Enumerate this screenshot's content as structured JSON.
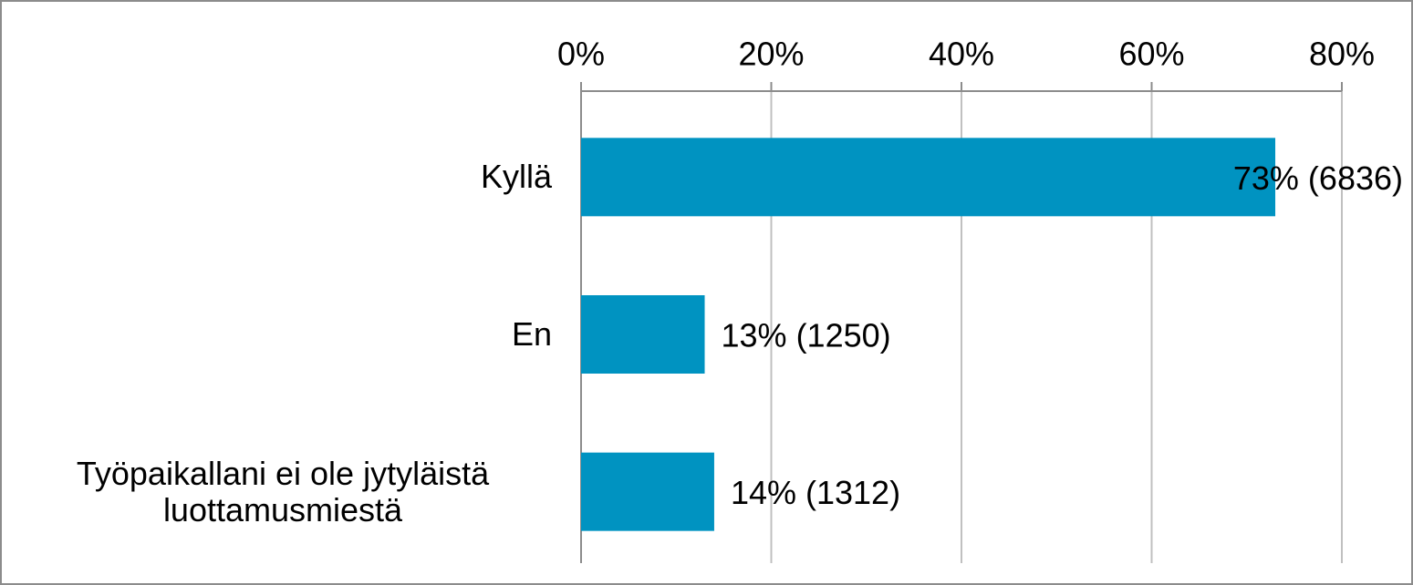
{
  "chart_data": {
    "type": "bar",
    "orientation": "horizontal",
    "categories": [
      "Kyllä",
      "En",
      "Työpaikallani ei ole jytyläistä luottamusmiestä"
    ],
    "values": [
      73,
      13,
      14
    ],
    "value_labels": [
      "73% (6836)",
      "13% (1250)",
      "14% (1312)"
    ],
    "color": "#0093c1",
    "xlim": [
      0,
      80
    ],
    "xticks": [
      {
        "value": 0,
        "label": "0%"
      },
      {
        "value": 20,
        "label": "20%"
      },
      {
        "value": 40,
        "label": "40%"
      },
      {
        "value": 60,
        "label": "60%"
      },
      {
        "value": 80,
        "label": "80%"
      }
    ],
    "grid": true
  }
}
